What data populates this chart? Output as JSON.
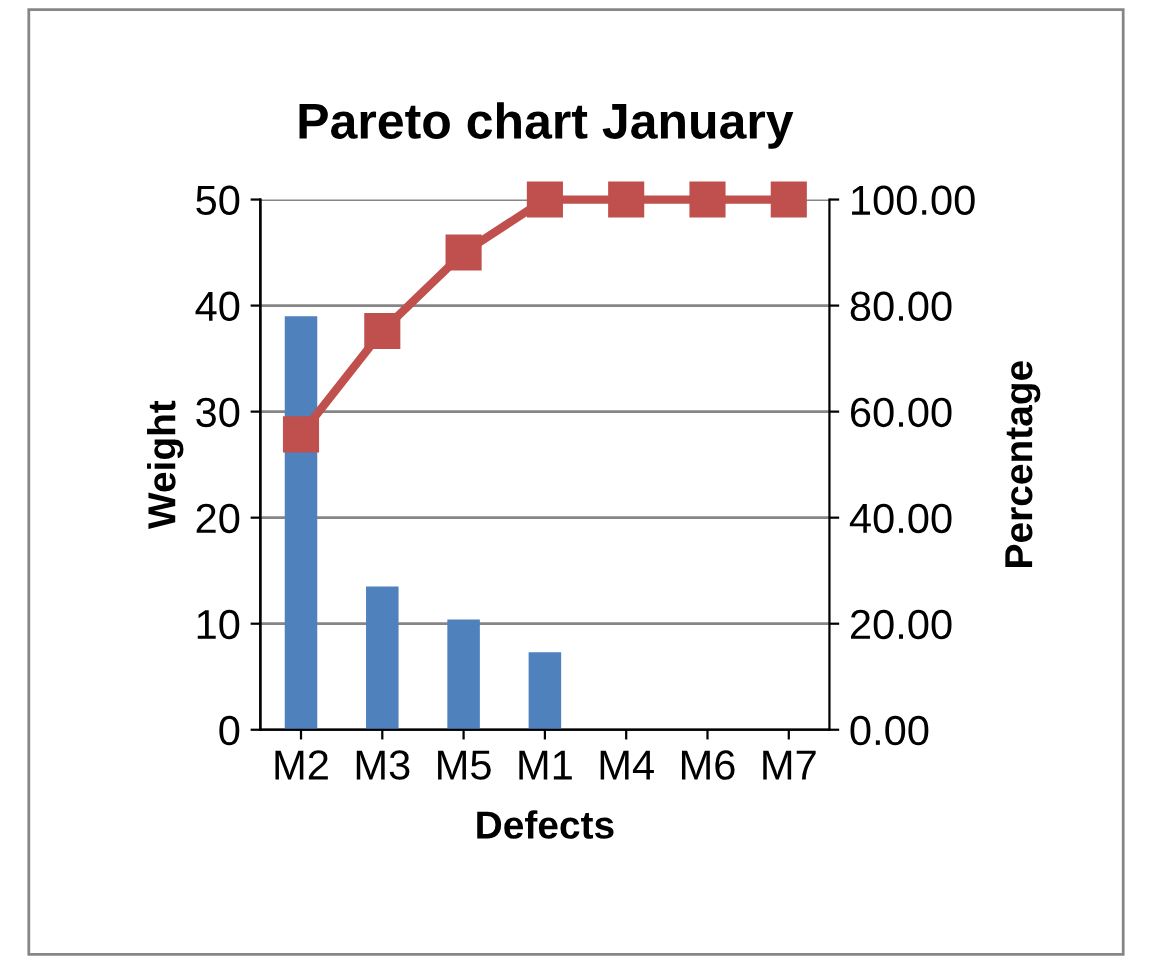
{
  "chart_data": {
    "type": "bar",
    "title": "Pareto chart January",
    "xlabel": "Defects",
    "ylabel": "Weight",
    "y2label": "Percentage",
    "categories": [
      "M2",
      "M3",
      "M5",
      "M1",
      "M4",
      "M6",
      "M7"
    ],
    "series": [
      {
        "color": "#4f81bd",
        "values": [
          39,
          13.5,
          10.4,
          7.3,
          0,
          0,
          0
        ]
      },
      {
        "type": "line",
        "axis": "y2",
        "color": "#c0504d",
        "marker": "square",
        "line_style": "solid",
        "values": [
          55.7,
          75.2,
          90,
          100,
          100,
          100,
          100
        ]
      }
    ],
    "ylim": [
      0,
      50
    ],
    "yticks": [
      0,
      10,
      20,
      30,
      40,
      50
    ],
    "y2lim": [
      0,
      100
    ],
    "y2ticks": [
      {
        "value": 0,
        "label": "0.00"
      },
      {
        "value": 20,
        "label": "20.00"
      },
      {
        "value": 40,
        "label": "40.00"
      },
      {
        "value": 60,
        "label": "60.00"
      },
      {
        "value": 80,
        "label": "80.00"
      },
      {
        "value": 100,
        "label": "100.00"
      }
    ],
    "grid": "y",
    "legend": false
  }
}
